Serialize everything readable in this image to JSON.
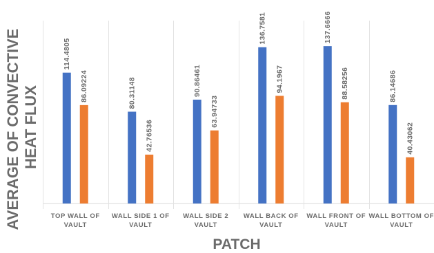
{
  "chart_data": {
    "type": "bar",
    "title": "",
    "xlabel": "PATCH",
    "ylabel_lines": [
      "AVERAGE OF CONVECTIVE",
      "HEAT FLUX"
    ],
    "categories": [
      [
        "TOP WALL OF",
        "VAULT"
      ],
      [
        "WALL SIDE 1 OF",
        "VAULT"
      ],
      [
        "WALL SIDE 2",
        "VAULT"
      ],
      [
        "WALL BACK OF",
        "VAULT"
      ],
      [
        "WALL FRONT OF",
        "VAULT"
      ],
      [
        "WALL BOTTOM OF",
        "VAULT"
      ]
    ],
    "series": [
      {
        "values": [
          114.4805,
          80.31148,
          90.86461,
          136.7581,
          137.6666,
          86.14686
        ],
        "labels": [
          "114.4805",
          "80.31148",
          "90.86461",
          "136.7581",
          "137.6666",
          "86.14686"
        ],
        "color": "#4472c4"
      },
      {
        "values": [
          86.09224,
          42.76536,
          63.94733,
          94.1967,
          88.58256,
          40.43062
        ],
        "labels": [
          "86.09224",
          "42.76536",
          "63.94733",
          "94.1967",
          "88.58256",
          "40.43062"
        ],
        "color": "#ed7d31"
      }
    ],
    "ylim": [
      0,
      160
    ],
    "grid": "vertical-category-separators",
    "legend": "none"
  }
}
